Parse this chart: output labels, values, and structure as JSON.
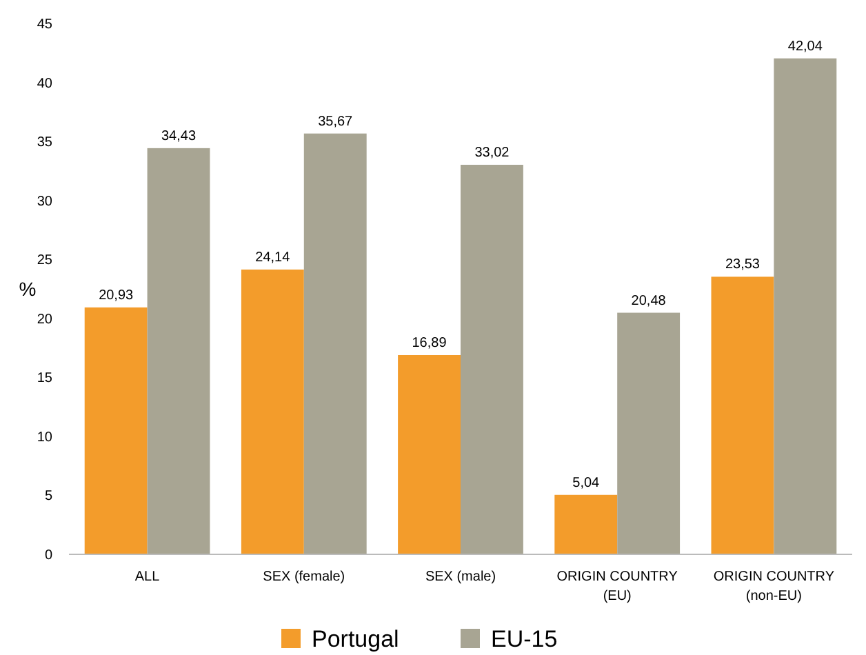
{
  "chart_data": {
    "type": "bar",
    "ylabel": "%",
    "categories": [
      "ALL",
      "SEX (female)",
      "SEX (male)",
      "ORIGIN COUNTRY (EU)",
      "ORIGIN COUNTRY (non-EU)"
    ],
    "series": [
      {
        "name": "Portugal",
        "color": "#f39c2b",
        "values": [
          20.93,
          24.14,
          16.89,
          5.04,
          23.53
        ],
        "value_labels": [
          "20,93",
          "24,14",
          "16,89",
          "5,04",
          "23,53"
        ]
      },
      {
        "name": "EU-15",
        "color": "#a8a593",
        "values": [
          34.43,
          35.67,
          33.02,
          20.48,
          42.04
        ],
        "value_labels": [
          "34,43",
          "35,67",
          "33,02",
          "20,48",
          "42,04"
        ]
      }
    ],
    "ylim": [
      0,
      45
    ],
    "yticks": [
      0,
      5,
      10,
      15,
      20,
      25,
      30,
      35,
      40,
      45
    ],
    "grid": false,
    "legend": "bottom"
  }
}
